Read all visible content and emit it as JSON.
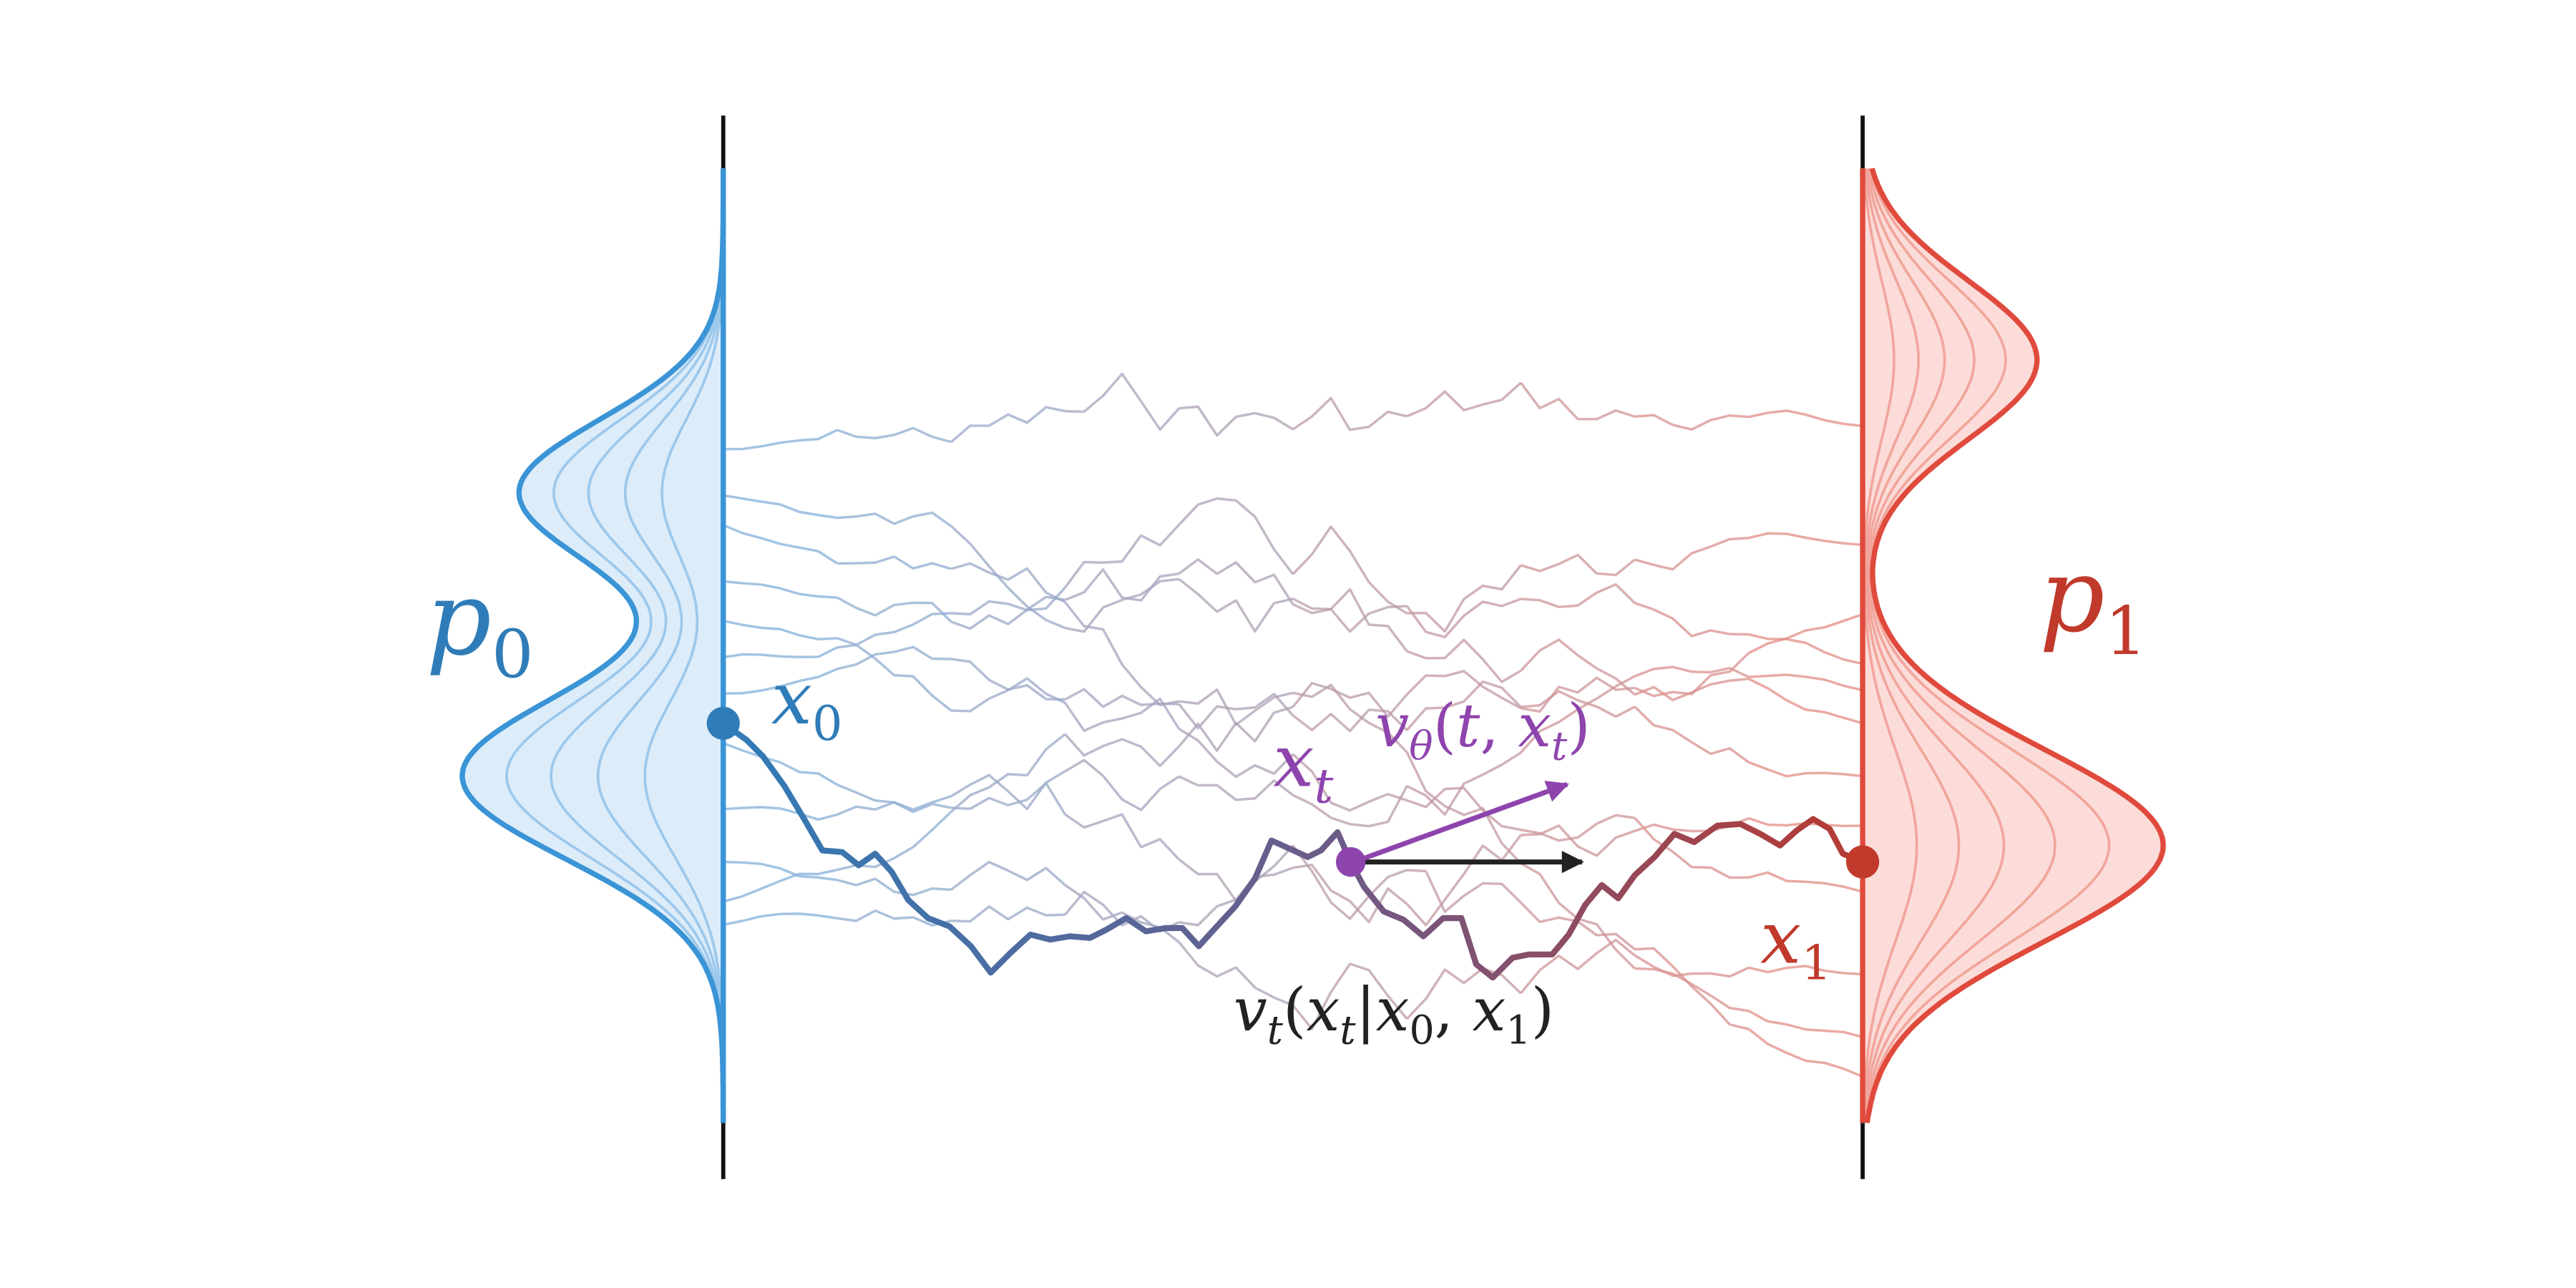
{
  "labels": {
    "p0_base": "p",
    "p0_sub": "0",
    "p1_base": "p",
    "p1_sub": "1",
    "x0_base": "x",
    "x0_sub": "0",
    "x1_base": "x",
    "x1_sub": "1",
    "xt_base": "x",
    "xt_sub": "t",
    "vtheta": {
      "v": "v",
      "sub": "θ",
      "open": "(",
      "t": "t",
      "comma": ", ",
      "x": "x",
      "xsub": "t",
      "close": ")"
    },
    "vcond": {
      "v": "v",
      "sub": "t",
      "open": "(",
      "x": "x",
      "xsub": "t",
      "bar": "|",
      "x0": "x",
      "x0sub": "0",
      "comma": ", ",
      "x1": "x",
      "x1sub": "1",
      "close": ")"
    }
  },
  "colors": {
    "blue": "#3a94d6",
    "blue_dark": "#2f7cb8",
    "blue_fill": "#dcecf9",
    "red": "#e04a3c",
    "red_dark": "#c0392b",
    "red_fill": "#fbdcd9",
    "purple": "#8e44ad",
    "black": "#222222"
  }
}
